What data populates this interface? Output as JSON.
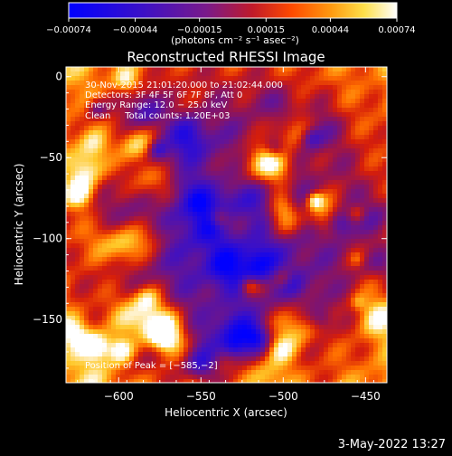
{
  "chart_data": {
    "type": "heatmap",
    "title": "Reconstructed RHESSI Image",
    "xlabel": "Heliocentric X (arcsec)",
    "ylabel": "Heliocentric Y (arcsec)",
    "xlim": [
      -632,
      -437
    ],
    "ylim": [
      -189,
      6
    ],
    "x_ticks": [
      -600,
      -550,
      -500,
      -450
    ],
    "x_tick_labels": [
      "−600",
      "−550",
      "−500",
      "−450"
    ],
    "y_ticks": [
      0,
      -50,
      -100,
      -150
    ],
    "y_tick_labels": [
      "0",
      "−50",
      "−100",
      "−150"
    ],
    "colorbar": {
      "ticks": [
        -0.00074,
        -0.00044,
        -0.00015,
        0.00015,
        0.00044,
        0.00074
      ],
      "tick_labels": [
        "−0.00074",
        "−0.00044",
        "−0.00015",
        "0.00015",
        "0.00044",
        "0.00074"
      ],
      "unit_label": "(photons cm⁻² s⁻¹ asec⁻²)",
      "colors": [
        "#0000ff",
        "#5a0aa0",
        "#8a1a78",
        "#d61e0a",
        "#ff7a00",
        "#ffd53a",
        "#ffffff"
      ]
    },
    "annotations": {
      "time_range": "30‑Nov‑2015 21:01:20.000 to 21:02:44.000",
      "detectors": "Detectors: 3F 4F 5F 6F 7F 8F, Att 0",
      "energy_range": "Energy Range: 12.0 − 25.0 keV",
      "method_counts": "Clean     Total counts: 1.20E+03",
      "peak_position": "Position of Peak = [−585,−2]"
    }
  },
  "footer": {
    "date_stamp": "3‑May‑2022 13:27"
  }
}
